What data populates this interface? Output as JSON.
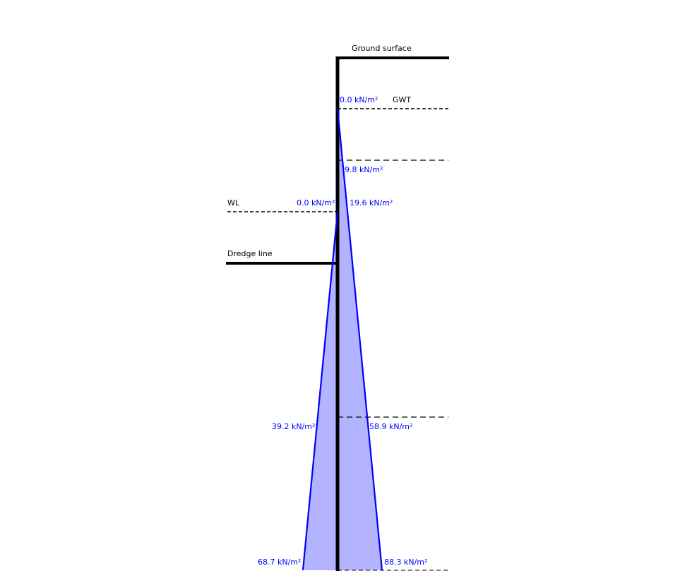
{
  "labels": {
    "ground_surface": "Ground surface",
    "gwt": "GWT",
    "wl": "WL",
    "dredge_line": "Dredge line"
  },
  "pressures": {
    "right_gwt": "0.0 kN/m²",
    "right_mid": "9.8 kN/m²",
    "left_wl": "0.0 kN/m²",
    "right_wl": "19.6 kN/m²",
    "left_lower": "39.2 kN/m²",
    "right_lower": "58.9 kN/m²",
    "left_base": "68.7 kN/m²",
    "right_base": "88.3 kN/m²"
  },
  "colors": {
    "wall": "#000000",
    "pressure_outline": "#0000ff",
    "pressure_fill": "#b3b3ff",
    "label_text": "#0000ff"
  }
}
